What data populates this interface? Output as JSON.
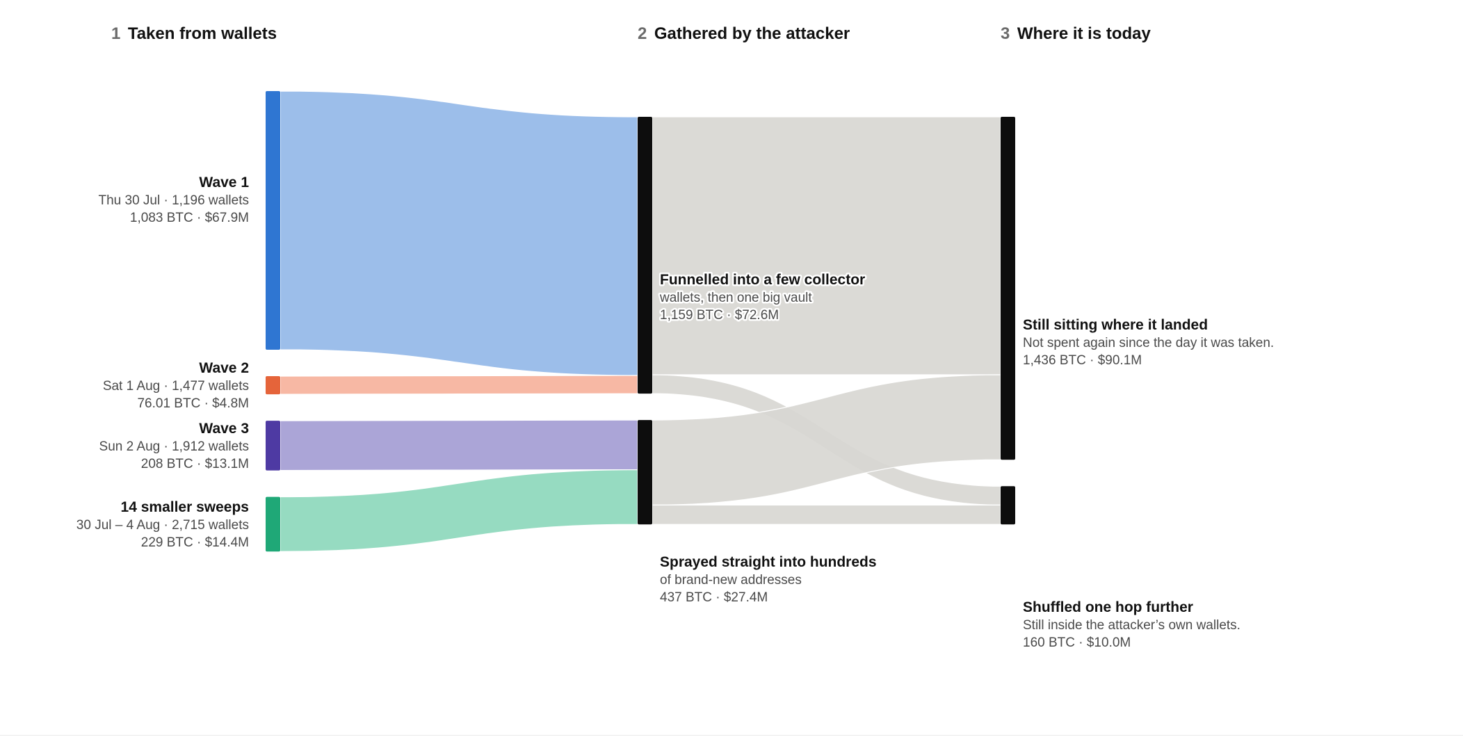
{
  "columns": [
    {
      "step": "1",
      "title": "Taken from wallets"
    },
    {
      "step": "2",
      "title": "Gathered by the attacker"
    },
    {
      "step": "3",
      "title": "Where it is today"
    }
  ],
  "chart_data": {
    "type": "sankey",
    "unit": "BTC",
    "nodes": [
      {
        "id": "wave1",
        "column": 0,
        "title": "Wave 1",
        "line1": "Thu 30 Jul · 1,196 wallets",
        "line2": "1,083 BTC · $67.9M",
        "btc": 1083,
        "usd_m": 67.9,
        "wallets": 1196,
        "color": "#2f76d2"
      },
      {
        "id": "wave2",
        "column": 0,
        "title": "Wave 2",
        "line1": "Sat 1 Aug · 1,477 wallets",
        "line2": "76.01 BTC · $4.8M",
        "btc": 76.01,
        "usd_m": 4.8,
        "wallets": 1477,
        "color": "#e5643a"
      },
      {
        "id": "wave3",
        "column": 0,
        "title": "Wave 3",
        "line1": "Sun 2 Aug · 1,912 wallets",
        "line2": "208 BTC · $13.1M",
        "btc": 208,
        "usd_m": 13.1,
        "wallets": 1912,
        "color": "#4e3aa3"
      },
      {
        "id": "smaller",
        "column": 0,
        "title": "14 smaller sweeps",
        "line1": "30 Jul – 4 Aug · 2,715 wallets",
        "line2": "229 BTC · $14.4M",
        "btc": 229,
        "usd_m": 14.4,
        "wallets": 2715,
        "color": "#1fa877"
      },
      {
        "id": "collector",
        "column": 1,
        "title": "Funnelled into a few collector",
        "line1": "wallets, then one big vault",
        "line2": "1,159 BTC · $72.6M",
        "btc": 1159,
        "usd_m": 72.6,
        "color": "#0d0d0d"
      },
      {
        "id": "sprayed",
        "column": 1,
        "title": "Sprayed straight into hundreds",
        "line1": "of brand-new addresses",
        "line2": "437 BTC · $27.4M",
        "btc": 437,
        "usd_m": 27.4,
        "color": "#0d0d0d"
      },
      {
        "id": "sitting",
        "column": 2,
        "title": "Still sitting where it landed",
        "line1": "Not spent again since the day it was taken.",
        "line2": "1,436 BTC · $90.1M",
        "btc": 1436,
        "usd_m": 90.1,
        "color": "#0d0d0d"
      },
      {
        "id": "shuffled",
        "column": 2,
        "title": "Shuffled one hop further",
        "line1": "Still inside the attacker’s own wallets.",
        "line2": "160 BTC · $10.0M",
        "btc": 160,
        "usd_m": 10.0,
        "color": "#0d0d0d"
      }
    ],
    "links": [
      {
        "source": "wave1",
        "target": "collector",
        "value": 1083,
        "color": "#94b8e8"
      },
      {
        "source": "wave2",
        "target": "collector",
        "value": 76,
        "color": "#f6b29c"
      },
      {
        "source": "wave3",
        "target": "sprayed",
        "value": 208,
        "color": "#a49dd4"
      },
      {
        "source": "smaller",
        "target": "sprayed",
        "value": 229,
        "color": "#8dd8bc"
      },
      {
        "source": "collector",
        "target": "sitting",
        "value": 1080,
        "color": "#d8d7d3"
      },
      {
        "source": "collector",
        "target": "shuffled",
        "value": 79,
        "color": "#d8d7d3"
      },
      {
        "source": "sprayed",
        "target": "sitting",
        "value": 356,
        "color": "#d8d7d3"
      },
      {
        "source": "sprayed",
        "target": "shuffled",
        "value": 81,
        "color": "#d8d7d3"
      }
    ]
  }
}
